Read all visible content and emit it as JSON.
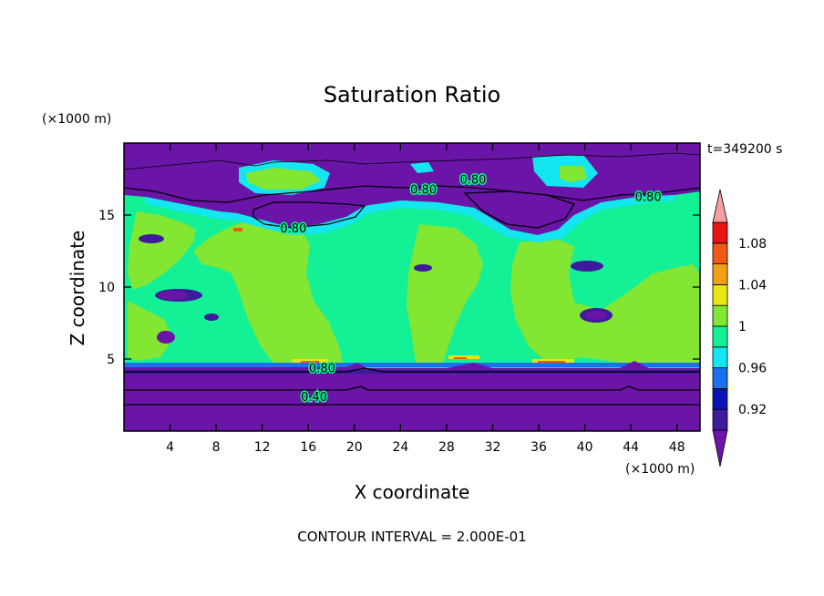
{
  "chart_data": {
    "type": "heatmap",
    "title": "Saturation Ratio",
    "xlabel": "X coordinate",
    "ylabel": "Z coordinate",
    "x_unit": "(×1000 m)",
    "y_unit": "(×1000 m)",
    "time_label": "t=349200 s",
    "footer": "CONTOUR INTERVAL = 2.000E-01",
    "xlim": [
      0,
      50
    ],
    "ylim": [
      0,
      20
    ],
    "x_ticks": [
      4,
      8,
      12,
      16,
      20,
      24,
      28,
      32,
      36,
      40,
      44,
      48
    ],
    "x_tick_labels": [
      "4",
      "8",
      "12",
      "16",
      "20",
      "24",
      "28",
      "32",
      "36",
      "40",
      "44",
      "48"
    ],
    "y_ticks": [
      5,
      10,
      15
    ],
    "y_tick_labels": [
      "5",
      "10",
      "15"
    ],
    "colorbar": {
      "levels": [
        0.9,
        0.92,
        0.94,
        0.96,
        0.98,
        1.0,
        1.02,
        1.04,
        1.06,
        1.08,
        1.1
      ],
      "labels": [
        {
          "value": 0.92,
          "text": "0.92"
        },
        {
          "value": 0.96,
          "text": "0.96"
        },
        {
          "value": 1.0,
          "text": "1"
        },
        {
          "value": 1.04,
          "text": "1.04"
        },
        {
          "value": 1.08,
          "text": "1.08"
        }
      ],
      "colors": [
        "#3d1a9e",
        "#0a14b4",
        "#1e6ef0",
        "#14e6f0",
        "#14f096",
        "#82e632",
        "#e6e614",
        "#f0a014",
        "#f05a14",
        "#e61414"
      ],
      "under_color": "#6a14a8",
      "over_color": "#f5a0a0"
    },
    "contour_labels": [
      {
        "x": 17.2,
        "z": 4.4,
        "text": "0.80"
      },
      {
        "x": 16.5,
        "z": 2.4,
        "text": "0.40"
      },
      {
        "x": 14.7,
        "z": 14.1,
        "text": "0.80"
      },
      {
        "x": 26.0,
        "z": 16.8,
        "text": "0.80"
      },
      {
        "x": 30.3,
        "z": 17.5,
        "text": "0.80"
      },
      {
        "x": 45.5,
        "z": 16.3,
        "text": "0.80"
      }
    ],
    "colors": {
      "dry": "#6a14a8",
      "moist": "#14f096",
      "near_saturated": "#82e632",
      "edge": "#14e6f0",
      "supersaturated": "#e6e614"
    }
  }
}
